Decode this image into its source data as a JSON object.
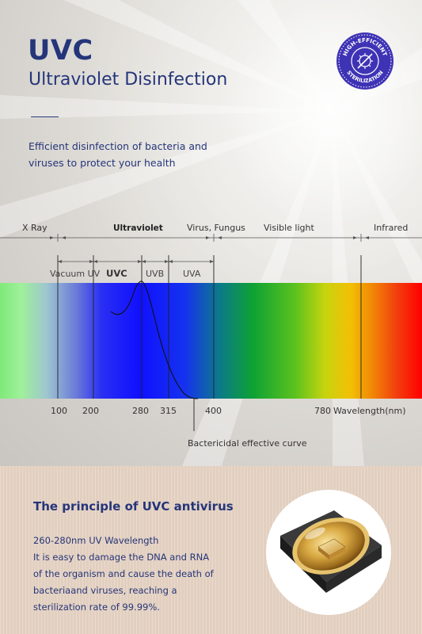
{
  "header": {
    "title": "UVC",
    "subtitle": "Ultraviolet Disinfection",
    "description_lines": [
      "Efficient disinfection of bacteria and",
      "viruses to protect your health"
    ]
  },
  "badge": {
    "top_text": "HIGH-EFFICIENT",
    "bottom_text": "STERILIZATION",
    "icon": "virus-crossed-icon",
    "color": "#3f33b5"
  },
  "spectrum": {
    "top_labels": [
      "X Ray",
      "Ultraviolet",
      "Virus, Fungus",
      "Visible light",
      "Infrared"
    ],
    "sub_labels": [
      "Vacuum UV",
      "UVC",
      "UVB",
      "UVA"
    ],
    "ticks": [
      "100",
      "200",
      "280",
      "315",
      "400",
      "780"
    ],
    "axis_unit": "Wavelength(nm)",
    "curve_label": "Bactericidal effective curve"
  },
  "principle": {
    "title": "The principle of UVC antivirus",
    "lines": [
      "260-280nm UV Wavelength",
      "It is easy to damage the DNA and RNA",
      "of the organism and cause the death of",
      "bacteriaand viruses, reaching a",
      "sterilization rate of 99.99%."
    ],
    "image": "uvc-led-chip-icon"
  },
  "colors": {
    "brand_navy": "#25357a",
    "badge_purple": "#3f33b5",
    "beige": "#e2cfbf"
  }
}
